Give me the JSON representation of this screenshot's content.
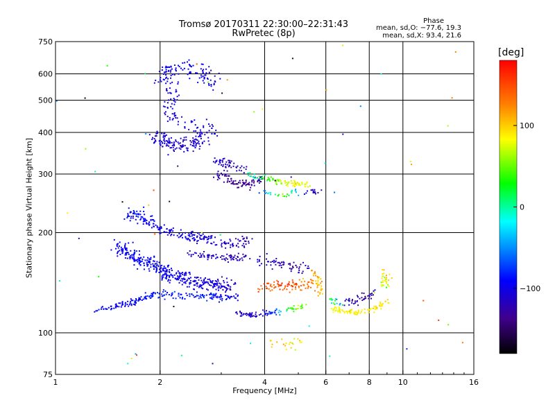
{
  "chart_data": {
    "type": "scatter",
    "title": "Tromsø 20170311 22:30:00–22:31:43",
    "subtitle": "RwPretec (8p)",
    "xlabel": "Frequency [MHz]",
    "ylabel": "Stationary phase Virtual Height [km]",
    "x_scale": "log",
    "y_scale": "log",
    "xlim": [
      1,
      16
    ],
    "ylim": [
      75,
      750
    ],
    "x_ticks": [
      1,
      2,
      4,
      6,
      8,
      10,
      16
    ],
    "x_tick_labels": [
      "1",
      "2",
      "4",
      "6",
      "8",
      "10",
      "16"
    ],
    "y_ticks": [
      75,
      100,
      200,
      300,
      400,
      500,
      600,
      750
    ],
    "y_tick_labels": [
      "75",
      "100",
      "200",
      "300",
      "400",
      "500",
      "600",
      "750"
    ],
    "x_gridlines": [
      2,
      4,
      6,
      8,
      10
    ],
    "y_gridlines": [
      100,
      200,
      300,
      400,
      500,
      600
    ],
    "grid": true,
    "phase_box": {
      "title": "Phase",
      "line1": "mean, sd,O: −77.6, 19.3",
      "line2": "mean, sd,X:  93.4, 21.6"
    },
    "colorbar": {
      "unit": "deg",
      "ticks": [
        100,
        0,
        -100
      ],
      "tick_labels": [
        "100",
        "0",
        "−100"
      ],
      "range": [
        -180,
        180
      ],
      "colormap": "rainbow"
    },
    "traces": [
      {
        "name": "",
        "points": [
          [
            1.95,
            385,
            -100
          ],
          [
            2.05,
            380,
            -105
          ],
          [
            2.2,
            370,
            -110
          ],
          [
            2.4,
            360,
            -112
          ],
          [
            2.6,
            380,
            -108
          ],
          [
            2.8,
            400,
            -100
          ],
          [
            2.1,
            450,
            -102
          ],
          [
            2.2,
            520,
            -104
          ],
          [
            2.0,
            600,
            -98
          ],
          [
            2.3,
            640,
            -95
          ],
          [
            2.6,
            600,
            -100
          ],
          [
            2.9,
            560,
            -105
          ]
        ],
        "spread": [
          0.06,
          0.06
        ],
        "count": 340,
        "phase_sd": 12
      },
      {
        "name": "",
        "points": [
          [
            2.9,
            300,
            -120
          ],
          [
            3.1,
            295,
            -130
          ],
          [
            3.3,
            280,
            -140
          ],
          [
            3.6,
            280,
            -135
          ],
          [
            3.9,
            290,
            -120
          ]
        ],
        "spread": [
          0.03,
          0.03
        ],
        "count": 90,
        "phase_sd": 12
      },
      {
        "name": "",
        "points": [
          [
            2.9,
            330,
            -110
          ],
          [
            3.2,
            320,
            -120
          ],
          [
            3.5,
            310,
            -115
          ]
        ],
        "spread": [
          0.03,
          0.03
        ],
        "count": 50,
        "phase_sd": 10
      },
      {
        "name": "",
        "points": [
          [
            3.6,
            300,
            -10
          ],
          [
            4.0,
            290,
            30
          ],
          [
            4.4,
            285,
            60
          ],
          [
            4.8,
            280,
            80
          ],
          [
            5.3,
            280,
            85
          ]
        ],
        "spread": [
          0.025,
          0.025
        ],
        "count": 90,
        "phase_sd": 25
      },
      {
        "name": "",
        "points": [
          [
            3.9,
            265,
            -80
          ],
          [
            4.5,
            260,
            60
          ],
          [
            5.2,
            265,
            -100
          ],
          [
            5.8,
            268,
            -120
          ]
        ],
        "spread": [
          0.02,
          0.02
        ],
        "count": 45,
        "phase_sd": 15
      },
      {
        "name": "",
        "points": [
          [
            1.3,
            118,
            -90
          ],
          [
            1.5,
            120,
            -95
          ],
          [
            1.7,
            125,
            -90
          ],
          [
            1.9,
            130,
            -85
          ],
          [
            2.2,
            130,
            -80
          ],
          [
            2.6,
            128,
            -85
          ],
          [
            3.0,
            128,
            -90
          ],
          [
            3.4,
            128,
            -95
          ]
        ],
        "spread": [
          0.025,
          0.025
        ],
        "count": 200,
        "phase_sd": 12
      },
      {
        "name": "",
        "points": [
          [
            1.5,
            180,
            -95
          ],
          [
            1.7,
            170,
            -90
          ],
          [
            1.9,
            160,
            -92
          ],
          [
            2.1,
            150,
            -95
          ],
          [
            2.4,
            145,
            -100
          ],
          [
            2.8,
            140,
            -100
          ],
          [
            3.2,
            138,
            -110
          ]
        ],
        "spread": [
          0.05,
          0.05
        ],
        "count": 380,
        "phase_sd": 12
      },
      {
        "name": "",
        "points": [
          [
            1.6,
            230,
            -90
          ],
          [
            1.8,
            220,
            -92
          ],
          [
            2.0,
            205,
            -95
          ],
          [
            2.4,
            195,
            -98
          ],
          [
            2.8,
            190,
            -105
          ],
          [
            3.2,
            185,
            -115
          ],
          [
            3.6,
            190,
            -120
          ]
        ],
        "spread": [
          0.04,
          0.04
        ],
        "count": 220,
        "phase_sd": 15
      },
      {
        "name": "",
        "points": [
          [
            2.4,
            175,
            -110
          ],
          [
            2.8,
            170,
            -115
          ],
          [
            3.2,
            168,
            -120
          ],
          [
            3.6,
            170,
            -125
          ]
        ],
        "spread": [
          0.025,
          0.025
        ],
        "count": 80,
        "phase_sd": 12
      },
      {
        "name": "",
        "points": [
          [
            3.3,
            115,
            -120
          ],
          [
            3.7,
            113,
            -115
          ],
          [
            4.2,
            115,
            -80
          ],
          [
            4.8,
            118,
            40
          ],
          [
            5.3,
            120,
            60
          ]
        ],
        "spread": [
          0.02,
          0.02
        ],
        "count": 90,
        "phase_sd": 25
      },
      {
        "name": "",
        "points": [
          [
            3.8,
            135,
            140
          ],
          [
            4.2,
            138,
            150
          ],
          [
            4.6,
            140,
            145
          ],
          [
            5.0,
            138,
            140
          ],
          [
            5.5,
            140,
            130
          ]
        ],
        "spread": [
          0.04,
          0.04
        ],
        "count": 90,
        "phase_sd": 25
      },
      {
        "name": "",
        "points": [
          [
            3.8,
            165,
            -90
          ],
          [
            4.3,
            162,
            -120
          ],
          [
            4.8,
            158,
            -130
          ],
          [
            5.3,
            156,
            -120
          ]
        ],
        "spread": [
          0.04,
          0.04
        ],
        "count": 60,
        "phase_sd": 20
      },
      {
        "name": "",
        "points": [
          [
            5.5,
            155,
            120
          ],
          [
            5.7,
            145,
            110
          ],
          [
            5.8,
            130,
            100
          ]
        ],
        "spread": [
          0.02,
          0.02
        ],
        "count": 35,
        "phase_sd": 20
      },
      {
        "name": "",
        "points": [
          [
            6.3,
            118,
            80
          ],
          [
            6.8,
            116,
            85
          ],
          [
            7.5,
            115,
            90
          ],
          [
            8.2,
            117,
            90
          ],
          [
            9.0,
            125,
            90
          ]
        ],
        "spread": [
          0.02,
          0.02
        ],
        "count": 90,
        "phase_sd": 15
      },
      {
        "name": "",
        "points": [
          [
            6.2,
            125,
            40
          ],
          [
            7.0,
            124,
            -110
          ],
          [
            7.6,
            127,
            -130
          ],
          [
            8.3,
            132,
            -120
          ]
        ],
        "spread": [
          0.03,
          0.03
        ],
        "count": 55,
        "phase_sd": 40
      },
      {
        "name": "",
        "points": [
          [
            8.6,
            140,
            70
          ],
          [
            9.0,
            143,
            80
          ],
          [
            8.8,
            155,
            90
          ]
        ],
        "spread": [
          0.03,
          0.03
        ],
        "count": 30,
        "phase_sd": 30
      },
      {
        "name": "",
        "points": [
          [
            4.2,
            95,
            120
          ],
          [
            4.7,
            92,
            90
          ],
          [
            5.1,
            95,
            80
          ]
        ],
        "spread": [
          0.03,
          0.04
        ],
        "count": 22,
        "phase_sd": 30
      }
    ],
    "noise_count": 60
  }
}
